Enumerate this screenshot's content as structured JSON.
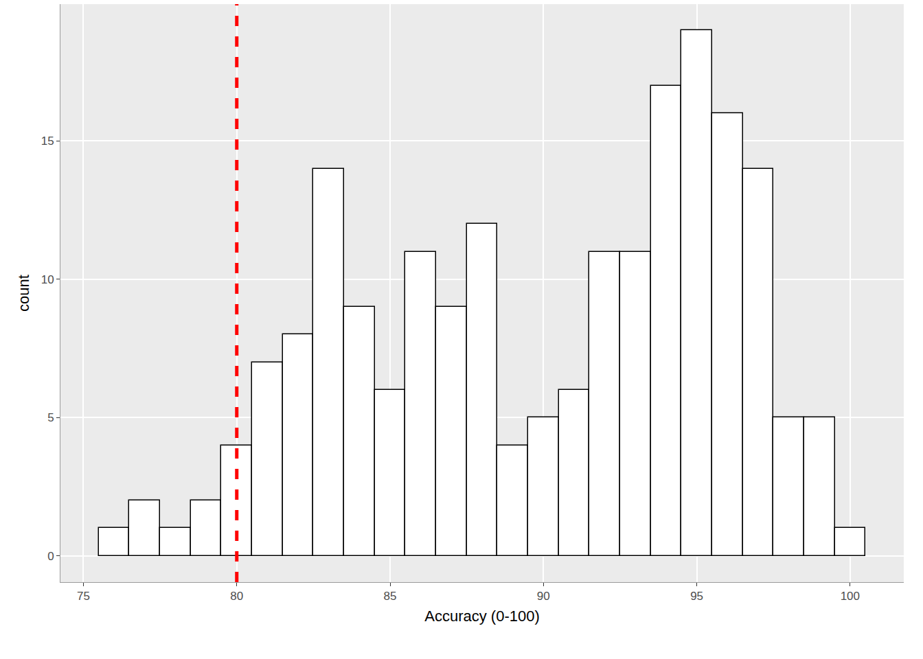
{
  "chart_data": {
    "type": "histogram",
    "x_label": "Accuracy (0-100)",
    "y_label": "count",
    "bins": [
      75.5,
      76.5,
      77.5,
      78.5,
      79.5,
      80.5,
      81.5,
      82.5,
      83.5,
      84.5,
      85.5,
      86.5,
      87.5,
      88.5,
      89.5,
      90.5,
      91.5,
      92.5,
      93.5,
      94.5,
      95.5,
      96.5,
      97.5,
      98.5,
      99.5,
      100.5
    ],
    "values": [
      1,
      2,
      1,
      2,
      4,
      7,
      8,
      14,
      9,
      6,
      11,
      9,
      12,
      4,
      5,
      6,
      11,
      11,
      17,
      19,
      16,
      14,
      5,
      5,
      1
    ],
    "color": "#ffffff",
    "reference_line": {
      "x": 80,
      "color": "#ff0000",
      "line_style": "dashed"
    },
    "xlim": [
      74.25,
      101.75
    ],
    "xticks": [
      75,
      80,
      85,
      90,
      95,
      100
    ],
    "ylim": [
      -0.95,
      19.95
    ],
    "yticks": [
      0,
      5,
      10,
      15
    ],
    "grid": true
  }
}
